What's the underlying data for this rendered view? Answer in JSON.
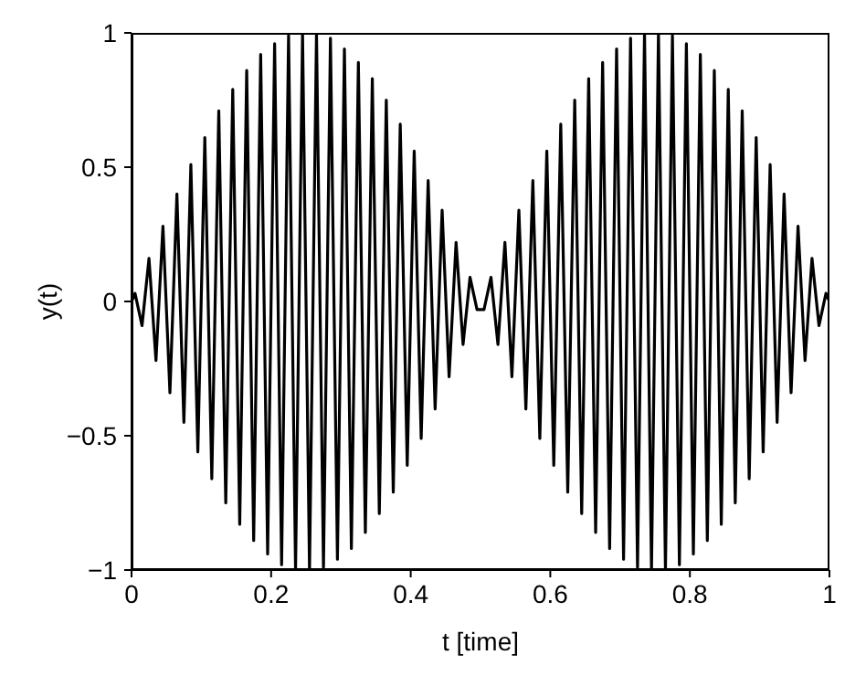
{
  "chart_data": {
    "type": "line",
    "xlabel": "t [time]",
    "ylabel": "y(t)",
    "xlim": [
      0,
      1
    ],
    "xticks": [
      0,
      0.2,
      0.4,
      0.6,
      0.8,
      1
    ],
    "ylim": [
      -1,
      1
    ],
    "yticks": [
      -1,
      -0.5,
      0,
      0.5,
      1
    ],
    "grid": false,
    "legend": false,
    "marker": "none",
    "line_style": "solid",
    "x": [
      0,
      0.005,
      0.015,
      0.025,
      0.035,
      0.045,
      0.055,
      0.065,
      0.075,
      0.085,
      0.095,
      0.105,
      0.115,
      0.125,
      0.135,
      0.145,
      0.155,
      0.165,
      0.175,
      0.185,
      0.195,
      0.205,
      0.215,
      0.225,
      0.235,
      0.245,
      0.255,
      0.265,
      0.275,
      0.285,
      0.295,
      0.305,
      0.315,
      0.325,
      0.335,
      0.345,
      0.355,
      0.365,
      0.375,
      0.385,
      0.395,
      0.405,
      0.415,
      0.425,
      0.435,
      0.445,
      0.455,
      0.465,
      0.475,
      0.485,
      0.495,
      0.505,
      0.515,
      0.525,
      0.535,
      0.545,
      0.555,
      0.565,
      0.575,
      0.585,
      0.595,
      0.605,
      0.615,
      0.625,
      0.635,
      0.645,
      0.655,
      0.665,
      0.675,
      0.685,
      0.695,
      0.705,
      0.715,
      0.725,
      0.735,
      0.745,
      0.755,
      0.765,
      0.775,
      0.785,
      0.795,
      0.805,
      0.815,
      0.825,
      0.835,
      0.845,
      0.855,
      0.865,
      0.875,
      0.885,
      0.895,
      0.905,
      0.915,
      0.925,
      0.935,
      0.945,
      0.955,
      0.965,
      0.975,
      0.985,
      0.995,
      1
    ],
    "series": [
      {
        "color": "#000000",
        "values": [
          0,
          0.03,
          -0.09,
          0.16,
          -0.22,
          0.28,
          -0.34,
          0.4,
          -0.45,
          0.51,
          -0.56,
          0.61,
          -0.66,
          0.71,
          -0.75,
          0.79,
          -0.83,
          0.86,
          -0.89,
          0.92,
          -0.94,
          0.96,
          -0.98,
          0.99,
          -1,
          1,
          -1,
          1,
          -0.99,
          0.98,
          -0.96,
          0.94,
          -0.92,
          0.89,
          -0.86,
          0.83,
          -0.79,
          0.75,
          -0.71,
          0.66,
          -0.61,
          0.56,
          -0.51,
          0.45,
          -0.4,
          0.34,
          -0.28,
          0.22,
          -0.16,
          0.09,
          -0.03,
          -0.03,
          0.09,
          -0.16,
          0.22,
          -0.28,
          0.34,
          -0.4,
          0.45,
          -0.51,
          0.56,
          -0.61,
          0.66,
          -0.71,
          0.75,
          -0.79,
          0.83,
          -0.86,
          0.89,
          -0.92,
          0.94,
          -0.96,
          0.98,
          -0.99,
          1,
          -1,
          1,
          -1,
          0.99,
          -0.98,
          0.96,
          -0.94,
          0.92,
          -0.89,
          0.86,
          -0.83,
          0.79,
          -0.75,
          0.71,
          -0.66,
          0.61,
          -0.56,
          0.51,
          -0.45,
          0.4,
          -0.34,
          0.28,
          -0.22,
          0.16,
          -0.09,
          0.03,
          0
        ]
      }
    ]
  }
}
